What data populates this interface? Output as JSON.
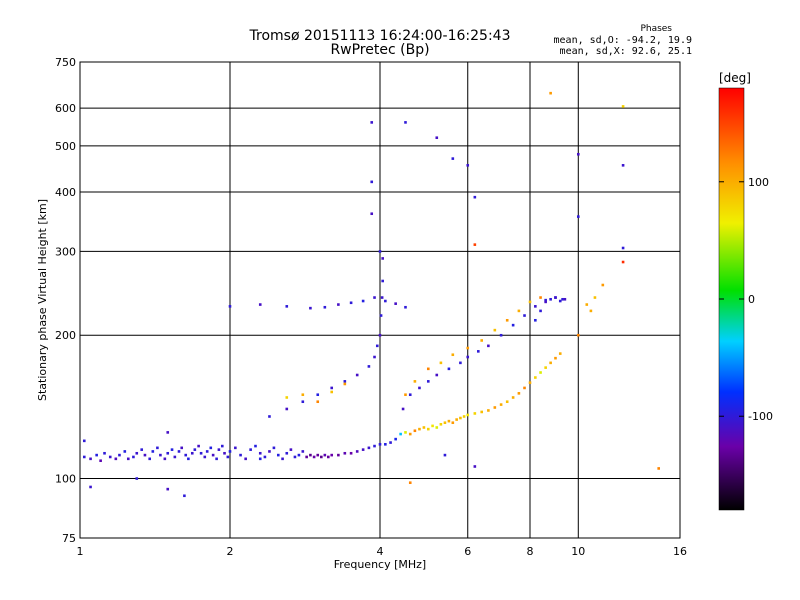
{
  "chart_data": {
    "type": "scatter",
    "title": "Tromsø 20151113 16:24:00-16:25:43",
    "subtitle": "RwPretec (Bp)",
    "xlabel": "Frequency [MHz]",
    "ylabel": "Stationary phase Virtual Height [km]",
    "x_scale": "log",
    "y_scale": "log",
    "xlim": [
      1,
      16
    ],
    "ylim": [
      75,
      750
    ],
    "x_ticks": [
      "1",
      "2",
      "4",
      "6",
      "8",
      "10",
      "16"
    ],
    "y_ticks": [
      "75",
      "100",
      "200",
      "300",
      "400",
      "500",
      "600",
      "750"
    ],
    "grid": true,
    "colorbar": {
      "label": "[deg]",
      "ticks": [
        "100",
        "0",
        "-100"
      ],
      "range": [
        -180,
        180
      ]
    },
    "stats": {
      "heading": "Phases",
      "line_o": "mean, sd,O:  -94.2, 19.9",
      "line_x": "mean, sd,X:   92.6, 25.1"
    },
    "series": [
      {
        "points": [
          [
            1.02,
            111,
            -100
          ],
          [
            1.05,
            110,
            -110
          ],
          [
            1.08,
            112,
            -95
          ],
          [
            1.1,
            109,
            -120
          ],
          [
            1.12,
            113,
            -100
          ],
          [
            1.15,
            111,
            -105
          ],
          [
            1.18,
            110,
            -115
          ],
          [
            1.2,
            112,
            -100
          ],
          [
            1.23,
            114,
            -95
          ],
          [
            1.25,
            110,
            -110
          ],
          [
            1.28,
            111,
            -100
          ],
          [
            1.3,
            113,
            -105
          ],
          [
            1.33,
            115,
            -100
          ],
          [
            1.35,
            112,
            -110
          ],
          [
            1.38,
            110,
            -100
          ],
          [
            1.4,
            114,
            -95
          ],
          [
            1.43,
            116,
            -100
          ],
          [
            1.45,
            112,
            -105
          ],
          [
            1.48,
            110,
            -110
          ],
          [
            1.5,
            113,
            -100
          ],
          [
            1.53,
            115,
            -95
          ],
          [
            1.55,
            111,
            -105
          ],
          [
            1.58,
            114,
            -100
          ],
          [
            1.6,
            116,
            -110
          ],
          [
            1.63,
            112,
            -100
          ],
          [
            1.65,
            110,
            -95
          ],
          [
            1.68,
            113,
            -105
          ],
          [
            1.7,
            115,
            -100
          ],
          [
            1.73,
            117,
            -110
          ],
          [
            1.75,
            113,
            -100
          ],
          [
            1.78,
            111,
            -105
          ],
          [
            1.8,
            114,
            -100
          ],
          [
            1.83,
            116,
            -95
          ],
          [
            1.85,
            112,
            -110
          ],
          [
            1.88,
            110,
            -100
          ],
          [
            1.9,
            115,
            -105
          ],
          [
            1.93,
            117,
            -100
          ],
          [
            1.95,
            113,
            -110
          ],
          [
            1.98,
            111,
            -100
          ],
          [
            2.0,
            114,
            -95
          ],
          [
            2.05,
            116,
            -105
          ],
          [
            2.1,
            112,
            -100
          ],
          [
            2.15,
            110,
            -110
          ],
          [
            2.2,
            115,
            -100
          ],
          [
            2.25,
            117,
            -95
          ],
          [
            2.3,
            113,
            -105
          ],
          [
            2.35,
            111,
            -100
          ],
          [
            2.4,
            114,
            -110
          ],
          [
            2.45,
            116,
            -100
          ],
          [
            2.5,
            112,
            -95
          ],
          [
            2.55,
            110,
            -105
          ],
          [
            2.6,
            113,
            -100
          ],
          [
            2.65,
            115,
            -110
          ],
          [
            2.7,
            111,
            -100
          ],
          [
            2.75,
            112,
            -95
          ],
          [
            2.8,
            114,
            -105
          ],
          [
            2.85,
            111,
            -130
          ],
          [
            2.9,
            112,
            -135
          ],
          [
            2.95,
            111,
            -125
          ],
          [
            3.0,
            112,
            -130
          ],
          [
            3.05,
            111,
            -135
          ],
          [
            3.1,
            112,
            -120
          ],
          [
            3.15,
            111,
            -130
          ],
          [
            3.2,
            112,
            -125
          ],
          [
            3.3,
            112,
            -130
          ],
          [
            3.4,
            113,
            -120
          ],
          [
            3.5,
            113,
            -125
          ],
          [
            3.6,
            114,
            -115
          ],
          [
            3.7,
            115,
            -110
          ],
          [
            3.8,
            116,
            -105
          ],
          [
            3.9,
            117,
            -100
          ],
          [
            4.0,
            118,
            -100
          ],
          [
            4.1,
            118,
            -95
          ],
          [
            4.2,
            119,
            -100
          ],
          [
            4.3,
            121,
            -90
          ],
          [
            4.4,
            124,
            -40
          ],
          [
            4.5,
            125,
            60
          ],
          [
            4.6,
            124,
            110
          ],
          [
            4.7,
            126,
            120
          ],
          [
            4.8,
            127,
            100
          ],
          [
            4.9,
            128,
            90
          ],
          [
            5.0,
            127,
            80
          ],
          [
            5.1,
            129,
            70
          ],
          [
            5.2,
            128,
            60
          ],
          [
            5.3,
            130,
            80
          ],
          [
            5.4,
            131,
            90
          ],
          [
            5.5,
            132,
            100
          ],
          [
            5.6,
            131,
            110
          ],
          [
            5.7,
            133,
            100
          ],
          [
            5.8,
            134,
            90
          ],
          [
            5.9,
            135,
            80
          ],
          [
            6.0,
            136,
            70
          ],
          [
            6.2,
            137,
            80
          ],
          [
            6.4,
            138,
            90
          ],
          [
            6.6,
            139,
            100
          ],
          [
            6.8,
            141,
            110
          ],
          [
            7.0,
            143,
            100
          ],
          [
            7.2,
            145,
            90
          ],
          [
            7.4,
            148,
            100
          ],
          [
            7.6,
            151,
            110
          ],
          [
            7.8,
            155,
            120
          ],
          [
            8.0,
            159,
            100
          ],
          [
            8.2,
            163,
            80
          ],
          [
            8.4,
            167,
            60
          ],
          [
            8.6,
            171,
            80
          ],
          [
            8.8,
            175,
            100
          ],
          [
            9.0,
            179,
            110
          ],
          [
            9.2,
            183,
            100
          ],
          [
            4.45,
            140,
            -110
          ],
          [
            4.6,
            150,
            -100
          ],
          [
            4.8,
            155,
            -105
          ],
          [
            5.0,
            160,
            -100
          ],
          [
            5.2,
            165,
            -110
          ],
          [
            5.5,
            170,
            -95
          ],
          [
            5.8,
            175,
            -100
          ],
          [
            6.0,
            180,
            -105
          ],
          [
            6.3,
            185,
            -100
          ],
          [
            6.6,
            190,
            -110
          ],
          [
            7.0,
            200,
            -100
          ],
          [
            7.4,
            210,
            -95
          ],
          [
            7.8,
            220,
            -100
          ],
          [
            8.2,
            230,
            -105
          ],
          [
            8.6,
            237,
            -100
          ],
          [
            9.0,
            240,
            -110
          ],
          [
            9.3,
            238,
            -100
          ],
          [
            4.5,
            150,
            110
          ],
          [
            4.7,
            160,
            100
          ],
          [
            5.0,
            170,
            120
          ],
          [
            5.3,
            175,
            90
          ],
          [
            5.6,
            182,
            100
          ],
          [
            6.0,
            188,
            110
          ],
          [
            6.4,
            195,
            100
          ],
          [
            6.8,
            205,
            90
          ],
          [
            7.2,
            215,
            110
          ],
          [
            7.6,
            225,
            100
          ],
          [
            8.0,
            235,
            90
          ],
          [
            8.4,
            240,
            120
          ],
          [
            2.4,
            135,
            -100
          ],
          [
            2.6,
            140,
            -110
          ],
          [
            2.8,
            145,
            -100
          ],
          [
            3.0,
            150,
            -95
          ],
          [
            3.2,
            155,
            -105
          ],
          [
            3.4,
            160,
            -100
          ],
          [
            3.6,
            165,
            -110
          ],
          [
            3.8,
            172,
            -100
          ],
          [
            3.9,
            180,
            -105
          ],
          [
            3.95,
            190,
            -100
          ],
          [
            4.0,
            200,
            -110
          ],
          [
            4.02,
            220,
            -100
          ],
          [
            4.04,
            240,
            -105
          ],
          [
            4.05,
            260,
            -100
          ],
          [
            4.05,
            290,
            -110
          ],
          [
            2.6,
            148,
            80
          ],
          [
            2.8,
            150,
            100
          ],
          [
            3.0,
            145,
            120
          ],
          [
            3.2,
            152,
            90
          ],
          [
            3.4,
            158,
            110
          ],
          [
            2.0,
            230,
            -100
          ],
          [
            2.3,
            232,
            -110
          ],
          [
            2.6,
            230,
            -100
          ],
          [
            2.9,
            228,
            -105
          ],
          [
            3.1,
            229,
            -100
          ],
          [
            3.3,
            232,
            -110
          ],
          [
            3.5,
            234,
            -100
          ],
          [
            3.7,
            236,
            -95
          ],
          [
            3.9,
            240,
            -105
          ],
          [
            4.1,
            236,
            -100
          ],
          [
            4.3,
            233,
            -110
          ],
          [
            4.5,
            229,
            -100
          ],
          [
            8.6,
            235,
            -110
          ],
          [
            8.8,
            238,
            -100
          ],
          [
            9.0,
            240,
            -105
          ],
          [
            9.2,
            236,
            -100
          ],
          [
            9.4,
            238,
            -110
          ],
          [
            8.4,
            225,
            -100
          ],
          [
            8.2,
            215,
            -95
          ],
          [
            10.4,
            232,
            100
          ],
          [
            10.8,
            240,
            90
          ],
          [
            11.2,
            255,
            110
          ],
          [
            10.6,
            225,
            100
          ],
          [
            10.0,
            200,
            120
          ],
          [
            4.0,
            300,
            -100
          ],
          [
            3.85,
            360,
            -110
          ],
          [
            3.85,
            420,
            -100
          ],
          [
            3.85,
            560,
            -105
          ],
          [
            4.5,
            560,
            -100
          ],
          [
            5.2,
            520,
            -110
          ],
          [
            5.6,
            470,
            -100
          ],
          [
            6.0,
            455,
            -105
          ],
          [
            6.2,
            390,
            -100
          ],
          [
            10.0,
            480,
            -110
          ],
          [
            10.0,
            355,
            -100
          ],
          [
            12.3,
            455,
            -105
          ],
          [
            12.3,
            305,
            -100
          ],
          [
            8.8,
            645,
            110
          ],
          [
            12.3,
            605,
            80
          ],
          [
            12.3,
            285,
            160
          ],
          [
            14.5,
            105,
            120
          ],
          [
            6.2,
            310,
            150
          ],
          [
            4.6,
            98,
            120
          ],
          [
            5.4,
            112,
            -100
          ],
          [
            6.2,
            106,
            -110
          ],
          [
            1.05,
            96,
            -105
          ],
          [
            1.3,
            100,
            -100
          ],
          [
            1.5,
            95,
            -110
          ],
          [
            1.62,
            92,
            -100
          ],
          [
            2.3,
            110,
            -95
          ],
          [
            1.02,
            120,
            -100
          ],
          [
            1.5,
            125,
            -110
          ]
        ]
      }
    ]
  }
}
